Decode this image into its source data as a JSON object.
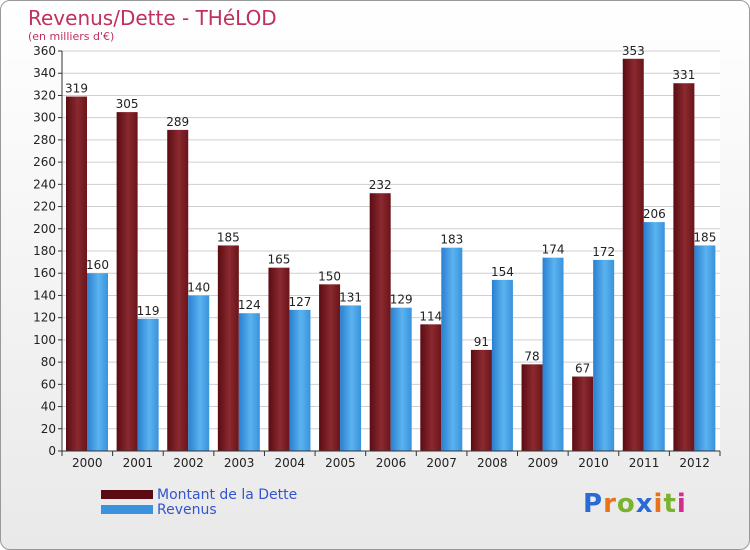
{
  "title": "Revenus/Dette - THéLOD",
  "subtitle": "(en milliers d'€)",
  "logo": {
    "text": "Proxiti",
    "letter_colors": [
      "#2a6ad6",
      "#e8731a",
      "#7ab32f",
      "#2a6ad6",
      "#e8731a",
      "#7ab32f",
      "#d62a8c"
    ]
  },
  "chart_data": {
    "type": "bar",
    "title": "Revenus/Dette - THéLOD",
    "ylabel": "(en milliers d'€)",
    "xlabel": "",
    "categories": [
      "2000",
      "2001",
      "2002",
      "2003",
      "2004",
      "2005",
      "2006",
      "2007",
      "2008",
      "2009",
      "2010",
      "2011",
      "2012"
    ],
    "ylim": [
      0,
      360
    ],
    "yticks": [
      0,
      20,
      40,
      60,
      80,
      100,
      120,
      140,
      160,
      180,
      200,
      220,
      240,
      260,
      280,
      300,
      320,
      340,
      360
    ],
    "grid": true,
    "series": [
      {
        "name": "Montant de la Dette",
        "color": "#7a1a22",
        "values": [
          319,
          305,
          289,
          185,
          165,
          150,
          232,
          114,
          91,
          78,
          67,
          353,
          331
        ]
      },
      {
        "name": "Revenus",
        "color": "#4aa3e6",
        "values": [
          160,
          119,
          140,
          124,
          127,
          131,
          129,
          183,
          154,
          174,
          172,
          206,
          185
        ]
      }
    ],
    "legend": "bottom-left"
  }
}
